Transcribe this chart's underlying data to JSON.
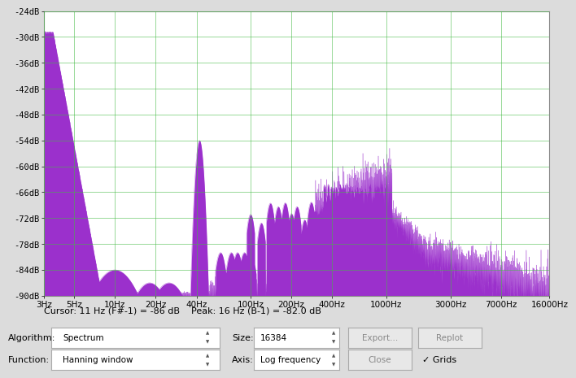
{
  "freq_min": 3,
  "freq_max": 16000,
  "db_min": -90,
  "db_max": -24,
  "db_ticks": [
    -24,
    -30,
    -36,
    -42,
    -48,
    -54,
    -60,
    -66,
    -72,
    -78,
    -84,
    -90
  ],
  "freq_ticks": [
    3,
    5,
    10,
    20,
    40,
    100,
    200,
    400,
    1000,
    3000,
    7000,
    16000
  ],
  "freq_tick_labels": [
    "3Hz",
    "5Hz",
    "10Hz",
    "20Hz",
    "40Hz",
    "100Hz",
    "200Hz",
    "400Hz",
    "1000Hz",
    "3000Hz",
    "7000Hz",
    "16000Hz"
  ],
  "db_tick_labels": [
    "-24dB",
    "-30dB",
    "-36dB",
    "-42dB",
    "-48dB",
    "-54dB",
    "-60dB",
    "-66dB",
    "-72dB",
    "-78dB",
    "-84dB",
    "-90dB"
  ],
  "fill_color": "#9B30CC",
  "line_color": "#9B30CC",
  "grid_color": "#44BB44",
  "grid_alpha": 0.55,
  "bg_color": "#FFFFFF",
  "panel_bg": "#DCDCDC",
  "cursor_text": "Cursor: 11 Hz (F#-1) = -86 dB    Peak: 16 Hz (B-1) = -82.0 dB",
  "algo_label": "Algorithm:",
  "algo_value": "Spectrum",
  "size_label": "Size:",
  "size_value": "16384",
  "func_label": "Function:",
  "func_value": "Hanning window",
  "axis_label": "Axis:",
  "axis_value": "Log frequency",
  "btn_export": "Export...",
  "btn_replot": "Replot",
  "btn_close": "Close",
  "chk_grids": "✓ Grids"
}
